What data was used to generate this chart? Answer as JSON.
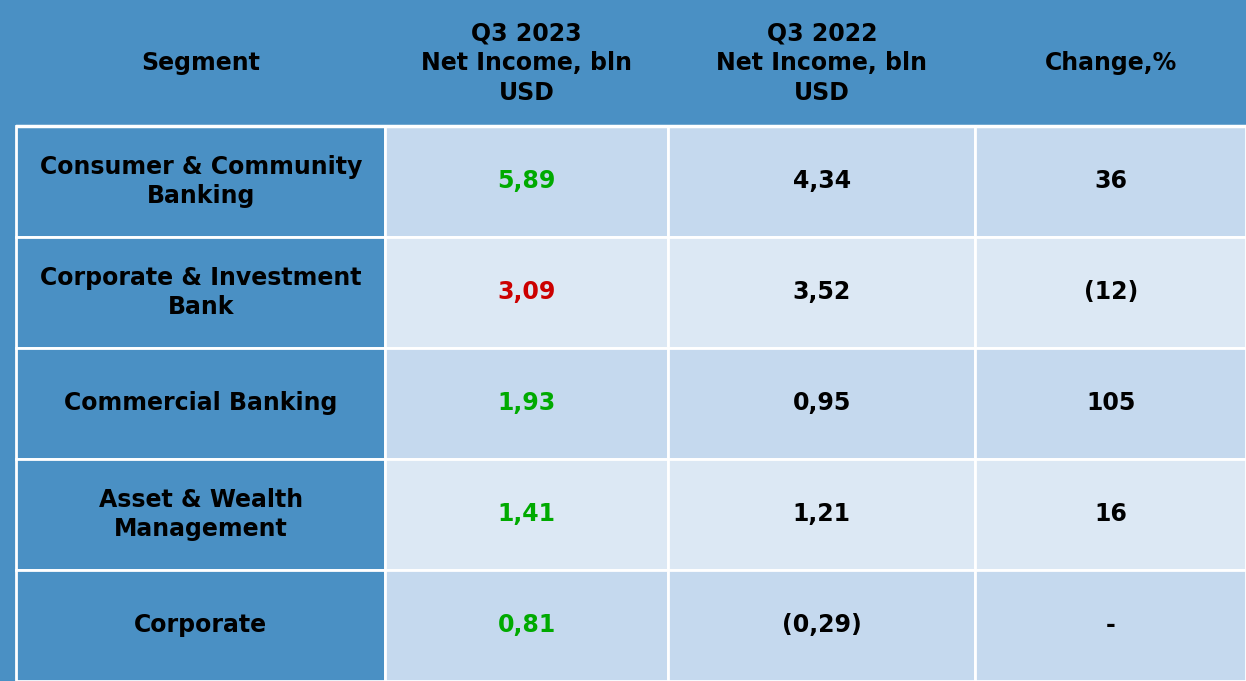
{
  "header_bg": "#4a90c4",
  "data_bg_light": "#c5d9ee",
  "data_bg_lighter": "#dce8f4",
  "columns": [
    "Segment",
    "Q3 2023\nNet Income, bln\nUSD",
    "Q3 2022\nNet Income, bln\nUSD",
    "Change,%"
  ],
  "segments": [
    "Consumer & Community\nBanking",
    "Corporate & Investment\nBank",
    "Commercial Banking",
    "Asset & Wealth\nManagement",
    "Corporate"
  ],
  "q3_2023": [
    "5,89",
    "3,09",
    "1,93",
    "1,41",
    "0,81"
  ],
  "q3_2022": [
    "4,34",
    "3,52",
    "0,95",
    "1,21",
    "(0,29)"
  ],
  "change": [
    "36",
    "(12)",
    "105",
    "16",
    "-"
  ],
  "q3_2023_colors": [
    "#00aa00",
    "#cc0000",
    "#00aa00",
    "#00aa00",
    "#00aa00"
  ],
  "header_font_size": 17,
  "cell_font_size": 17,
  "segment_font_size": 17,
  "fig_width": 12.46,
  "fig_height": 6.81,
  "dpi": 100
}
